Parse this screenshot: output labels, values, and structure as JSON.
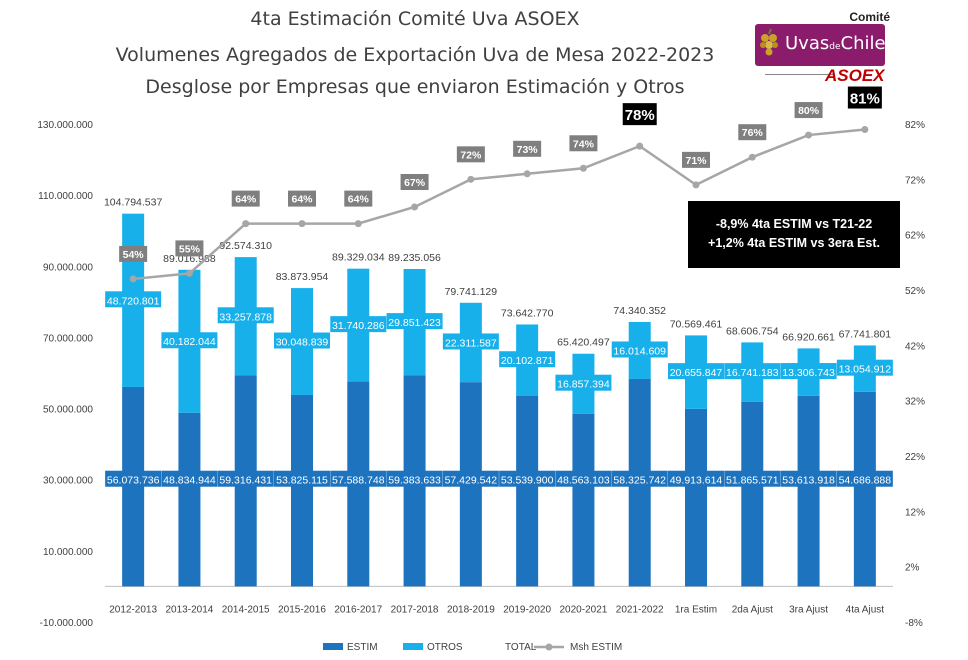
{
  "titles": {
    "line1": "4ta Estimación Comité Uva ASOEX",
    "line2": "Volumenes Agregados de Exportación Uva de Mesa 2022-2023",
    "line3": "Desglose por Empresas que enviaron Estimación y Otros"
  },
  "logo": {
    "comite": "Comité",
    "brand": "Uvas de Chile",
    "brand_display": "Uvas",
    "brand_small": "de",
    "brand_end": "Chile",
    "asoex": "ASOEX"
  },
  "note": {
    "line1": "-8,9% 4ta ESTIM vs T21-22",
    "line2": "+1,2% 4ta ESTIM vs 3era Est."
  },
  "colors": {
    "estim": "#1e73be",
    "otros": "#18b0ea",
    "msh": "#a6a6a6",
    "msh_label_bg": "#7f7f7f",
    "highlight_bg": "#000000"
  },
  "chart_data": {
    "type": "bar",
    "stacked": true,
    "categories": [
      "2012-2013",
      "2013-2014",
      "2014-2015",
      "2015-2016",
      "2016-2017",
      "2017-2018",
      "2018-2019",
      "2019-2020",
      "2020-2021",
      "2021-2022",
      "1ra Estim",
      "2da Ajust",
      "3ra Ajust",
      "4ta Ajust"
    ],
    "series": [
      {
        "name": "ESTIM",
        "values": [
          56073736,
          48834944,
          59316431,
          53825115,
          57588748,
          59383633,
          57429542,
          53539900,
          48563103,
          58325742,
          49913614,
          51865571,
          53613918,
          54686888
        ],
        "labels": [
          "56.073.736",
          "48.834.944",
          "59.316.431",
          "53.825.115",
          "57.588.748",
          "59.383.633",
          "57.429.542",
          "53.539.900",
          "48.563.103",
          "58.325.742",
          "49.913.614",
          "51.865.571",
          "53.613.918",
          "54.686.888"
        ]
      },
      {
        "name": "OTROS",
        "values": [
          48720801,
          40182044,
          33257878,
          30048839,
          31740286,
          29851423,
          22311587,
          20102871,
          16857394,
          16014609,
          20655847,
          16741183,
          13306743,
          13054912
        ],
        "labels": [
          "48.720.801",
          "40.182.044",
          "33.257.878",
          "30.048.839",
          "31.740.286",
          "29.851.423",
          "22.311.587",
          "20.102.871",
          "16.857.394",
          "16.014.609",
          "20.655.847",
          "16.741.183",
          "13.306.743",
          "13.054.912"
        ]
      },
      {
        "name": "TOTAL",
        "values": [
          104794537,
          89016988,
          92574310,
          83873954,
          89329034,
          89235056,
          79741129,
          73642770,
          65420497,
          74340352,
          70569461,
          68606754,
          66920661,
          67741801
        ],
        "labels": [
          "104.794.537",
          "89.016.988",
          "92.574.310",
          "83.873.954",
          "89.329.034",
          "89.235.056",
          "79.741.129",
          "73.642.770",
          "65.420.497",
          "74.340.352",
          "70.569.461",
          "68.606.754",
          "66.920.661",
          "67.741.801"
        ]
      },
      {
        "name": "Msh ESTIM",
        "axis": "right",
        "values": [
          54,
          55,
          64,
          64,
          64,
          67,
          72,
          73,
          74,
          78,
          71,
          76,
          80,
          81
        ],
        "labels": [
          "54%",
          "55%",
          "64%",
          "64%",
          "64%",
          "67%",
          "72%",
          "73%",
          "74%",
          "78%",
          "71%",
          "76%",
          "80%",
          "81%"
        ],
        "highlight": [
          false,
          false,
          false,
          false,
          false,
          false,
          false,
          false,
          false,
          true,
          false,
          false,
          false,
          true
        ]
      }
    ],
    "y_left": {
      "ylim": [
        -10000000,
        130000000
      ],
      "ticks": [
        -10000000,
        10000000,
        30000000,
        50000000,
        70000000,
        90000000,
        110000000,
        130000000
      ],
      "tick_labels": [
        "-10.000.000",
        "10.000.000",
        "30.000.000",
        "50.000.000",
        "70.000.000",
        "90.000.000",
        "110.000.000",
        "130.000.000"
      ]
    },
    "y_right": {
      "ylim": [
        -8,
        82
      ],
      "ticks": [
        -8,
        2,
        12,
        22,
        32,
        42,
        52,
        62,
        72,
        82
      ],
      "tick_labels": [
        "-8%",
        "2%",
        "12%",
        "22%",
        "32%",
        "42%",
        "52%",
        "62%",
        "72%",
        "82%"
      ]
    },
    "legend": {
      "position": "bottom",
      "items": [
        "ESTIM",
        "OTROS",
        "TOTAL",
        "Msh ESTIM"
      ]
    },
    "grid": false
  }
}
